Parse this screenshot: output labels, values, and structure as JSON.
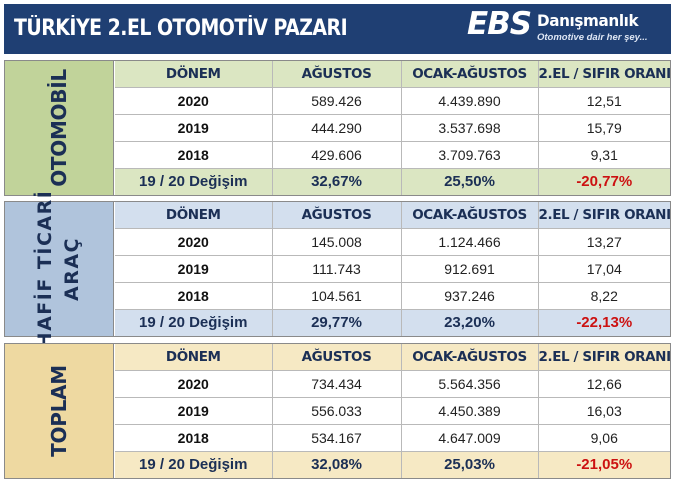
{
  "header": {
    "title": "TÜRKİYE 2.EL OTOMOTİV PAZARI",
    "logo_ebs": "EBS",
    "logo_brand": "Danışmanlık",
    "logo_tagline": "Otomotive dair her şey..."
  },
  "colors": {
    "header_bg": "#1f3f73",
    "otomobil": "#c1d39a",
    "hafif_ticari": "#b0c4dc",
    "toplam": "#eed9a1",
    "negative": "#cc1111"
  },
  "sections": [
    {
      "label_lines": [
        "OTOMOBİL"
      ],
      "columns": [
        "DÖNEM",
        "AĞUSTOS",
        "OCAK-AĞUSTOS",
        "2.EL / SIFIR ORANI"
      ],
      "rows": [
        [
          "2020",
          "589.426",
          "4.439.890",
          "12,51"
        ],
        [
          "2019",
          "444.290",
          "3.537.698",
          "15,79"
        ],
        [
          "2018",
          "429.606",
          "3.709.763",
          "9,31"
        ]
      ],
      "change": [
        "19 / 20 Değişim",
        "32,67%",
        "25,50%",
        "-20,77%"
      ]
    },
    {
      "label_lines": [
        "HAFİF TİCARİ",
        "ARAÇ"
      ],
      "columns": [
        "DÖNEM",
        "AĞUSTOS",
        "OCAK-AĞUSTOS",
        "2.EL / SIFIR ORANI"
      ],
      "rows": [
        [
          "2020",
          "145.008",
          "1.124.466",
          "13,27"
        ],
        [
          "2019",
          "111.743",
          "912.691",
          "17,04"
        ],
        [
          "2018",
          "104.561",
          "937.246",
          "8,22"
        ]
      ],
      "change": [
        "19 / 20 Değişim",
        "29,77%",
        "23,20%",
        "-22,13%"
      ]
    },
    {
      "label_lines": [
        "TOPLAM"
      ],
      "columns": [
        "DÖNEM",
        "AĞUSTOS",
        "OCAK-AĞUSTOS",
        "2.EL / SIFIR ORANI"
      ],
      "rows": [
        [
          "2020",
          "734.434",
          "5.564.356",
          "12,66"
        ],
        [
          "2019",
          "556.033",
          "4.450.389",
          "16,03"
        ],
        [
          "2018",
          "534.167",
          "4.647.009",
          "9,06"
        ]
      ],
      "change": [
        "19 / 20 Değişim",
        "32,08%",
        "25,03%",
        "-21,05%"
      ]
    }
  ]
}
